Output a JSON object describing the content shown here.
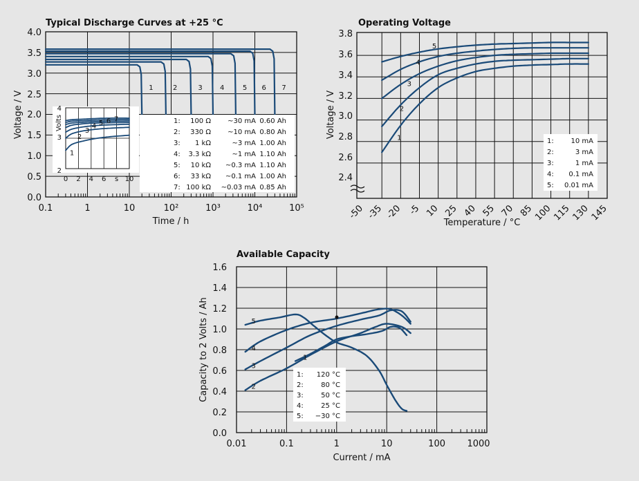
{
  "colors": {
    "curve": "#1a4a78",
    "background": "#e6e6e6",
    "grid": "#111111"
  },
  "chart_data": [
    {
      "type": "line",
      "title": "Typical Discharge Curves at +25 °C",
      "xlabel": "Time / h",
      "ylabel": "Voltage / V",
      "xscale": "log",
      "xlim": [
        0.1,
        100000
      ],
      "ylim": [
        0,
        4
      ],
      "xticklabels": [
        "0.1",
        "1",
        "10",
        "10²",
        "10³",
        "10⁴",
        "10⁵"
      ],
      "yticklabels": [
        "0.0",
        "0.5",
        "1.0",
        "1.5",
        "2.0",
        "2.5",
        "3.0",
        "3.5",
        "4.0"
      ],
      "grid": true,
      "series": [
        {
          "name": "1",
          "plateau_V": 3.2,
          "cutoff_h": 20,
          "end_V": 2.0
        },
        {
          "name": "2",
          "plateau_V": 3.27,
          "cutoff_h": 75,
          "end_V": 2.0
        },
        {
          "name": "3",
          "plateau_V": 3.33,
          "cutoff_h": 300,
          "end_V": 2.0
        },
        {
          "name": "4",
          "plateau_V": 3.4,
          "cutoff_h": 1000,
          "end_V": 2.0
        },
        {
          "name": "5",
          "plateau_V": 3.47,
          "cutoff_h": 3500,
          "end_V": 2.0
        },
        {
          "name": "6",
          "plateau_V": 3.53,
          "cutoff_h": 10000,
          "end_V": 2.0
        },
        {
          "name": "7",
          "plateau_V": 3.58,
          "cutoff_h": 30000,
          "end_V": 2.0
        }
      ],
      "legend_rows": [
        [
          "1:",
          "100 Ω",
          "~30 mA",
          "0.60 Ah"
        ],
        [
          "2:",
          "330 Ω",
          "~10 mA",
          "0.80 Ah"
        ],
        [
          "3:",
          "1 kΩ",
          "~3 mA",
          "1.00 Ah"
        ],
        [
          "4:",
          "3.3 kΩ",
          "~1 mA",
          "1.10 Ah"
        ],
        [
          "5:",
          "10 kΩ",
          "~0.3 mA",
          "1.10 Ah"
        ],
        [
          "6:",
          "33 kΩ",
          "~0.1 mA",
          "1.00 Ah"
        ],
        [
          "7:",
          "100 kΩ",
          "~0.03 mA",
          "0.85 Ah"
        ]
      ],
      "inset": {
        "ylabel": "Volts",
        "xticklabels": [
          "0",
          "2",
          "4",
          "6",
          "s",
          "10"
        ],
        "yticklabels": [
          "4",
          "3",
          "2"
        ],
        "xlim": [
          0,
          10
        ],
        "ylim": [
          2,
          4
        ],
        "series": [
          {
            "name": "1",
            "x": [
              0,
              1,
              3,
              5,
              7,
              10
            ],
            "y": [
              2.6,
              2.8,
              2.92,
              3.0,
              3.05,
              3.1
            ]
          },
          {
            "name": "2",
            "x": [
              0,
              1,
              3,
              5,
              7,
              10
            ],
            "y": [
              3.0,
              3.15,
              3.25,
              3.3,
              3.33,
              3.36
            ]
          },
          {
            "name": "3",
            "x": [
              0,
              1,
              3,
              5,
              7,
              10
            ],
            "y": [
              3.2,
              3.3,
              3.38,
              3.42,
              3.44,
              3.46
            ]
          },
          {
            "name": "4",
            "x": [
              0,
              1,
              3,
              5,
              7,
              10
            ],
            "y": [
              3.35,
              3.43,
              3.48,
              3.5,
              3.51,
              3.52
            ]
          },
          {
            "name": "5",
            "x": [
              0,
              1,
              3,
              5,
              7,
              10
            ],
            "y": [
              3.45,
              3.5,
              3.53,
              3.55,
              3.56,
              3.57
            ]
          },
          {
            "name": "6",
            "x": [
              0,
              1,
              3,
              5,
              7,
              10
            ],
            "y": [
              3.52,
              3.56,
              3.58,
              3.6,
              3.61,
              3.62
            ]
          },
          {
            "name": "7",
            "x": [
              0,
              1,
              3,
              5,
              7,
              10
            ],
            "y": [
              3.58,
              3.61,
              3.63,
              3.65,
              3.66,
              3.66
            ]
          }
        ]
      }
    },
    {
      "type": "line",
      "title": "Operating Voltage",
      "xlabel": "Temperature / °C",
      "ylabel": "Voltage / V",
      "xlim": [
        -55,
        145
      ],
      "ylim": [
        2.4,
        3.8
      ],
      "axis_break": "y",
      "xticklabels": [
        "-50",
        "-35",
        "-20",
        "-5",
        "10",
        "25",
        "40",
        "55",
        "70",
        "85",
        "100",
        "115",
        "130",
        "145"
      ],
      "yticklabels": [
        "2.4",
        "2.6",
        "2.8",
        "3.0",
        "3.2",
        "3.4",
        "3.6",
        "3.8"
      ],
      "grid": true,
      "series": [
        {
          "name": "1",
          "x": [
            -35,
            -20,
            -5,
            10,
            25,
            40,
            55,
            70,
            85,
            100,
            115,
            130
          ],
          "y": [
            2.7,
            2.95,
            3.15,
            3.3,
            3.39,
            3.45,
            3.48,
            3.5,
            3.51,
            3.515,
            3.52,
            3.52
          ]
        },
        {
          "name": "2",
          "x": [
            -35,
            -20,
            -5,
            10,
            25,
            40,
            55,
            70,
            85,
            100,
            115,
            130
          ],
          "y": [
            2.94,
            3.14,
            3.3,
            3.42,
            3.48,
            3.52,
            3.545,
            3.555,
            3.56,
            3.565,
            3.57,
            3.57
          ]
        },
        {
          "name": "3",
          "x": [
            -35,
            -20,
            -5,
            10,
            25,
            40,
            55,
            70,
            85,
            100,
            115,
            130
          ],
          "y": [
            3.2,
            3.33,
            3.43,
            3.5,
            3.55,
            3.58,
            3.6,
            3.61,
            3.615,
            3.62,
            3.62,
            3.62
          ]
        },
        {
          "name": "4",
          "x": [
            -35,
            -20,
            -5,
            10,
            25,
            40,
            55,
            70,
            85,
            100,
            115,
            130
          ],
          "y": [
            3.37,
            3.47,
            3.54,
            3.59,
            3.62,
            3.64,
            3.655,
            3.665,
            3.67,
            3.67,
            3.67,
            3.67
          ]
        },
        {
          "name": "5",
          "x": [
            -35,
            -20,
            -5,
            10,
            25,
            40,
            55,
            70,
            85,
            100,
            115,
            130
          ],
          "y": [
            3.54,
            3.59,
            3.63,
            3.66,
            3.68,
            3.695,
            3.705,
            3.71,
            3.715,
            3.72,
            3.72,
            3.72
          ]
        }
      ],
      "legend_rows": [
        [
          "1:",
          "10 mA"
        ],
        [
          "2:",
          "3 mA"
        ],
        [
          "3:",
          "1 mA"
        ],
        [
          "4:",
          "0.1 mA"
        ],
        [
          "5:",
          "0.01 mA"
        ]
      ]
    },
    {
      "type": "line",
      "title": "Available Capacity",
      "xlabel": "Current / mA",
      "ylabel": "Capacity to 2 Volts / Ah",
      "xscale": "log",
      "xlim": [
        0.01,
        1000
      ],
      "ylim": [
        0,
        1.6
      ],
      "xticklabels": [
        "0.01",
        "0.1",
        "1",
        "10",
        "100",
        "1000"
      ],
      "yticklabels": [
        "0.0",
        "0.2",
        "0.4",
        "0.6",
        "0.8",
        "1.0",
        "1.2",
        "1.4",
        "1.6"
      ],
      "grid": true,
      "series": [
        {
          "name": "1",
          "x": [
            0.15,
            0.3,
            0.6,
            1,
            2,
            4,
            8,
            12,
            18,
            25
          ],
          "y": [
            0.69,
            0.76,
            0.84,
            0.9,
            0.93,
            0.95,
            0.98,
            1.02,
            1.01,
            0.94
          ]
        },
        {
          "name": "2",
          "x": [
            0.015,
            0.03,
            0.1,
            0.3,
            1,
            3,
            6,
            10,
            20,
            30
          ],
          "y": [
            0.41,
            0.5,
            0.62,
            0.75,
            0.88,
            0.96,
            1.02,
            1.05,
            1.02,
            0.96
          ]
        },
        {
          "name": "3",
          "x": [
            0.015,
            0.03,
            0.1,
            0.3,
            1,
            3,
            7,
            12,
            20,
            30
          ],
          "y": [
            0.61,
            0.69,
            0.82,
            0.94,
            1.03,
            1.09,
            1.13,
            1.18,
            1.17,
            1.07
          ]
        },
        {
          "name": "4",
          "x": [
            0.015,
            0.03,
            0.1,
            0.3,
            1,
            3,
            7,
            12,
            20,
            30
          ],
          "y": [
            0.78,
            0.88,
            0.99,
            1.06,
            1.1,
            1.15,
            1.19,
            1.19,
            1.13,
            1.05
          ]
        },
        {
          "name": "5",
          "x": [
            0.015,
            0.03,
            0.07,
            0.15,
            0.22,
            0.35,
            0.6,
            1,
            2,
            4,
            7,
            10,
            15,
            20,
            25
          ],
          "y": [
            1.04,
            1.08,
            1.11,
            1.14,
            1.11,
            1.03,
            0.94,
            0.87,
            0.82,
            0.74,
            0.6,
            0.46,
            0.31,
            0.23,
            0.21
          ]
        }
      ],
      "legend_rows": [
        [
          "1:",
          "120 °C"
        ],
        [
          "2:",
          "80 °C"
        ],
        [
          "3:",
          "50 °C"
        ],
        [
          "4:",
          "25 °C"
        ],
        [
          "5:",
          "−30 °C"
        ]
      ]
    }
  ]
}
